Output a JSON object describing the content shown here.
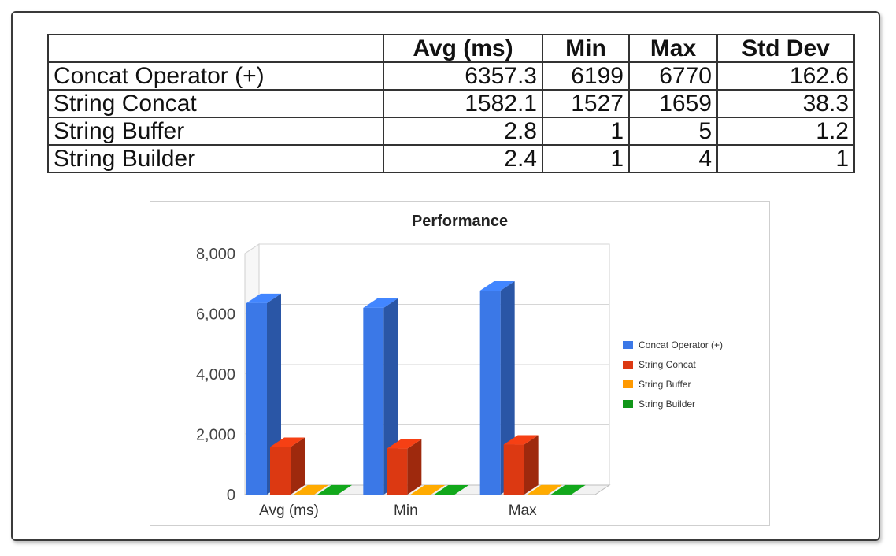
{
  "table": {
    "headers": [
      "",
      "Avg (ms)",
      "Min",
      "Max",
      "Std Dev"
    ],
    "rows": [
      {
        "label": "Concat Operator (+)",
        "values": [
          "6357.3",
          "6199",
          "6770",
          "162.6"
        ]
      },
      {
        "label": "String Concat",
        "values": [
          "1582.1",
          "1527",
          "1659",
          "38.3"
        ]
      },
      {
        "label": "String Buffer",
        "values": [
          "2.8",
          "1",
          "5",
          "1.2"
        ]
      },
      {
        "label": "String Builder",
        "values": [
          "2.4",
          "1",
          "4",
          "1"
        ]
      }
    ]
  },
  "chart_data": {
    "type": "bar",
    "title": "Performance",
    "categories": [
      "Avg (ms)",
      "Min",
      "Max"
    ],
    "series": [
      {
        "name": "Concat Operator (+)",
        "color": "#3b78e7",
        "values": [
          6357.3,
          6199,
          6770
        ]
      },
      {
        "name": "String Concat",
        "color": "#dc3912",
        "values": [
          1582.1,
          1527,
          1659
        ]
      },
      {
        "name": "String Buffer",
        "color": "#ff9900",
        "values": [
          2.8,
          1,
          5
        ]
      },
      {
        "name": "String Builder",
        "color": "#109618",
        "values": [
          2.4,
          1,
          4
        ]
      }
    ],
    "ylim": [
      0,
      8000
    ],
    "yticks": [
      "0",
      "2,000",
      "4,000",
      "6,000",
      "8,000"
    ],
    "ytick_values": [
      0,
      2000,
      4000,
      6000,
      8000
    ],
    "grid": true,
    "legend_position": "right",
    "style": "3d"
  }
}
